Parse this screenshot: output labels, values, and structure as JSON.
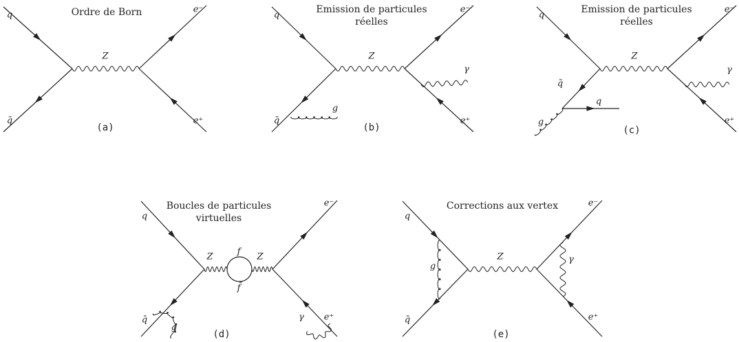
{
  "diagrams": [
    {
      "title": [
        "Ordre de Born"
      ],
      "caption": "(a)",
      "labels": [
        "q",
        "q̄",
        "Z",
        "e⁻",
        "e⁺"
      ]
    },
    {
      "title": [
        "Emission de particules",
        "réelles"
      ],
      "caption": "(b)",
      "labels": [
        "q",
        "q̄",
        "g",
        "Z",
        "γ",
        "e⁻",
        "e⁺"
      ]
    },
    {
      "title": [
        "Emission de particules",
        "réelles"
      ],
      "caption": "(c)",
      "labels": [
        "q",
        "q̄",
        "g",
        "q",
        "Z",
        "γ",
        "e⁻",
        "e⁺"
      ]
    },
    {
      "title": [
        "Boucles de particules",
        "virtuelles"
      ],
      "caption": "(d)",
      "labels": [
        "q",
        "q̄",
        "g",
        "Z",
        "f",
        "f̄",
        "Z",
        "γ",
        "e⁻",
        "e⁺"
      ]
    },
    {
      "title": [
        "Corrections aux vertex"
      ],
      "caption": "(e)",
      "labels": [
        "q",
        "q̄",
        "g",
        "Z",
        "γ",
        "e⁻",
        "e⁺"
      ]
    }
  ]
}
